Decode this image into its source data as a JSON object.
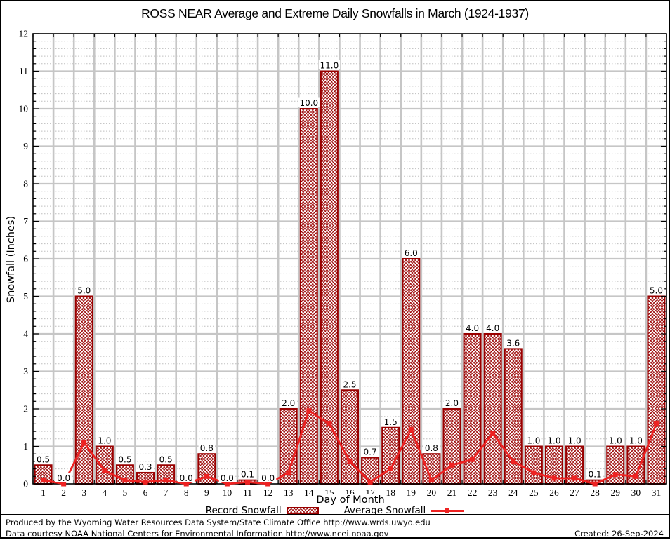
{
  "title": "ROSS NEAR Average and Extreme Daily Snowfalls in March (1924-1937)",
  "legend": {
    "record_label": "Record Snowfall",
    "average_label": "Average Snowfall"
  },
  "footer": {
    "line1": "Produced by the Wyoming Water Resources Data System/State Climate Office http://www.wrds.uwyo.edu",
    "line2": "Data courtesy NOAA National Centers for Environmental Information http://www.ncei.noaa.gov",
    "created": "Created: 26-Sep-2024"
  },
  "colors": {
    "bar": "#990000",
    "line": "#ee2222",
    "grid_major": "#c6c6c6",
    "grid_minor": "#bfbfbf",
    "axis": "#000000",
    "background": "#ffffff"
  },
  "chart_data": {
    "type": "bar",
    "title": "ROSS NEAR Average and Extreme Daily Snowfalls in March (1924-1937)",
    "xlabel": "Day of Month",
    "ylabel": "Snowfall (Inches)",
    "x": [
      1,
      2,
      3,
      4,
      5,
      6,
      7,
      8,
      9,
      10,
      11,
      12,
      13,
      14,
      15,
      16,
      17,
      18,
      19,
      20,
      21,
      22,
      23,
      24,
      25,
      26,
      27,
      28,
      29,
      30,
      31
    ],
    "ylim": [
      0,
      12
    ],
    "y_major_step": 1,
    "y_minor_step": 0.2,
    "grid": true,
    "legend_position": "bottom",
    "series": [
      {
        "name": "Record Snowfall",
        "type": "bar",
        "values": [
          0.5,
          0.0,
          5.0,
          1.0,
          0.5,
          0.3,
          0.5,
          0.0,
          0.8,
          0.0,
          0.1,
          0.0,
          2.0,
          10.0,
          11.0,
          2.5,
          0.7,
          1.5,
          6.0,
          0.8,
          2.0,
          4.0,
          4.0,
          3.6,
          1.0,
          1.0,
          1.0,
          0.1,
          1.0,
          1.0,
          5.0
        ],
        "labels": [
          "0.5",
          "0.0",
          "5.0",
          "1.0",
          "0.5",
          "0.3",
          "0.5",
          "0.0",
          "0.8",
          "0.0",
          "0.1",
          "0.0",
          "2.0",
          "10.0",
          "11.0",
          "2.5",
          "0.7",
          "1.5",
          "6.0",
          "0.8",
          "2.0",
          "4.0",
          "4.0",
          "3.6",
          "1.0",
          "1.0",
          "1.0",
          "0.1",
          "1.0",
          "1.0",
          "5.0"
        ]
      },
      {
        "name": "Average Snowfall",
        "type": "line",
        "values": [
          0.1,
          0.0,
          1.1,
          0.35,
          0.1,
          0.05,
          0.1,
          0.0,
          0.2,
          0.0,
          0.05,
          0.0,
          0.3,
          1.95,
          1.6,
          0.6,
          0.05,
          0.4,
          1.45,
          0.1,
          0.5,
          0.65,
          1.35,
          0.6,
          0.3,
          0.15,
          0.15,
          0.0,
          0.25,
          0.2,
          1.6
        ]
      }
    ]
  }
}
